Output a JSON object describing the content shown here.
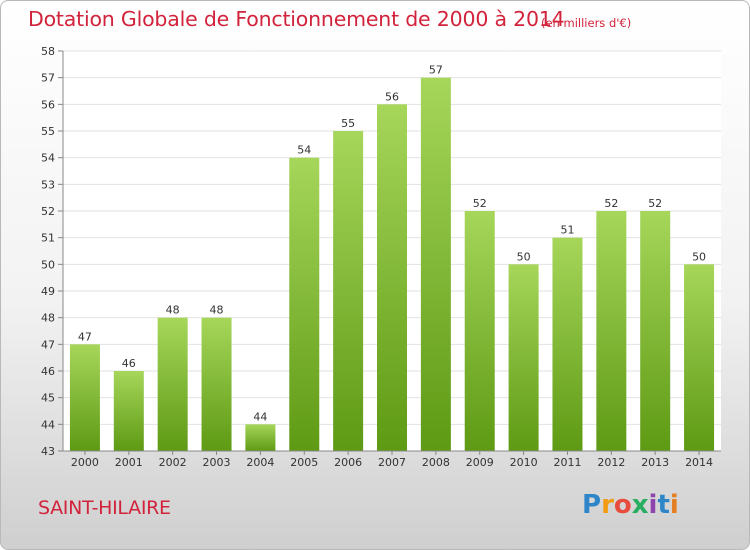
{
  "header": {
    "title": "Dotation Globale de Fonctionnement de 2000 à 2014",
    "subtitle": "(en milliers d'€)"
  },
  "footer": {
    "commune": "SAINT-HILAIRE",
    "logo": "Proxiti"
  },
  "colors": {
    "title": "#d2233c",
    "bar_light": "#a6d65a",
    "bar_dark": "#5e9a14"
  },
  "chart_data": {
    "type": "bar",
    "categories": [
      "2000",
      "2001",
      "2002",
      "2003",
      "2004",
      "2005",
      "2006",
      "2007",
      "2008",
      "2009",
      "2010",
      "2011",
      "2012",
      "2013",
      "2014"
    ],
    "values": [
      47,
      46,
      48,
      48,
      44,
      54,
      55,
      56,
      57,
      52,
      50,
      51,
      52,
      52,
      50
    ],
    "ylim": [
      43,
      58
    ],
    "yticks": [
      43,
      44,
      45,
      46,
      47,
      48,
      49,
      50,
      51,
      52,
      53,
      54,
      55,
      56,
      57,
      58
    ],
    "grid": true,
    "data_labels": true
  }
}
